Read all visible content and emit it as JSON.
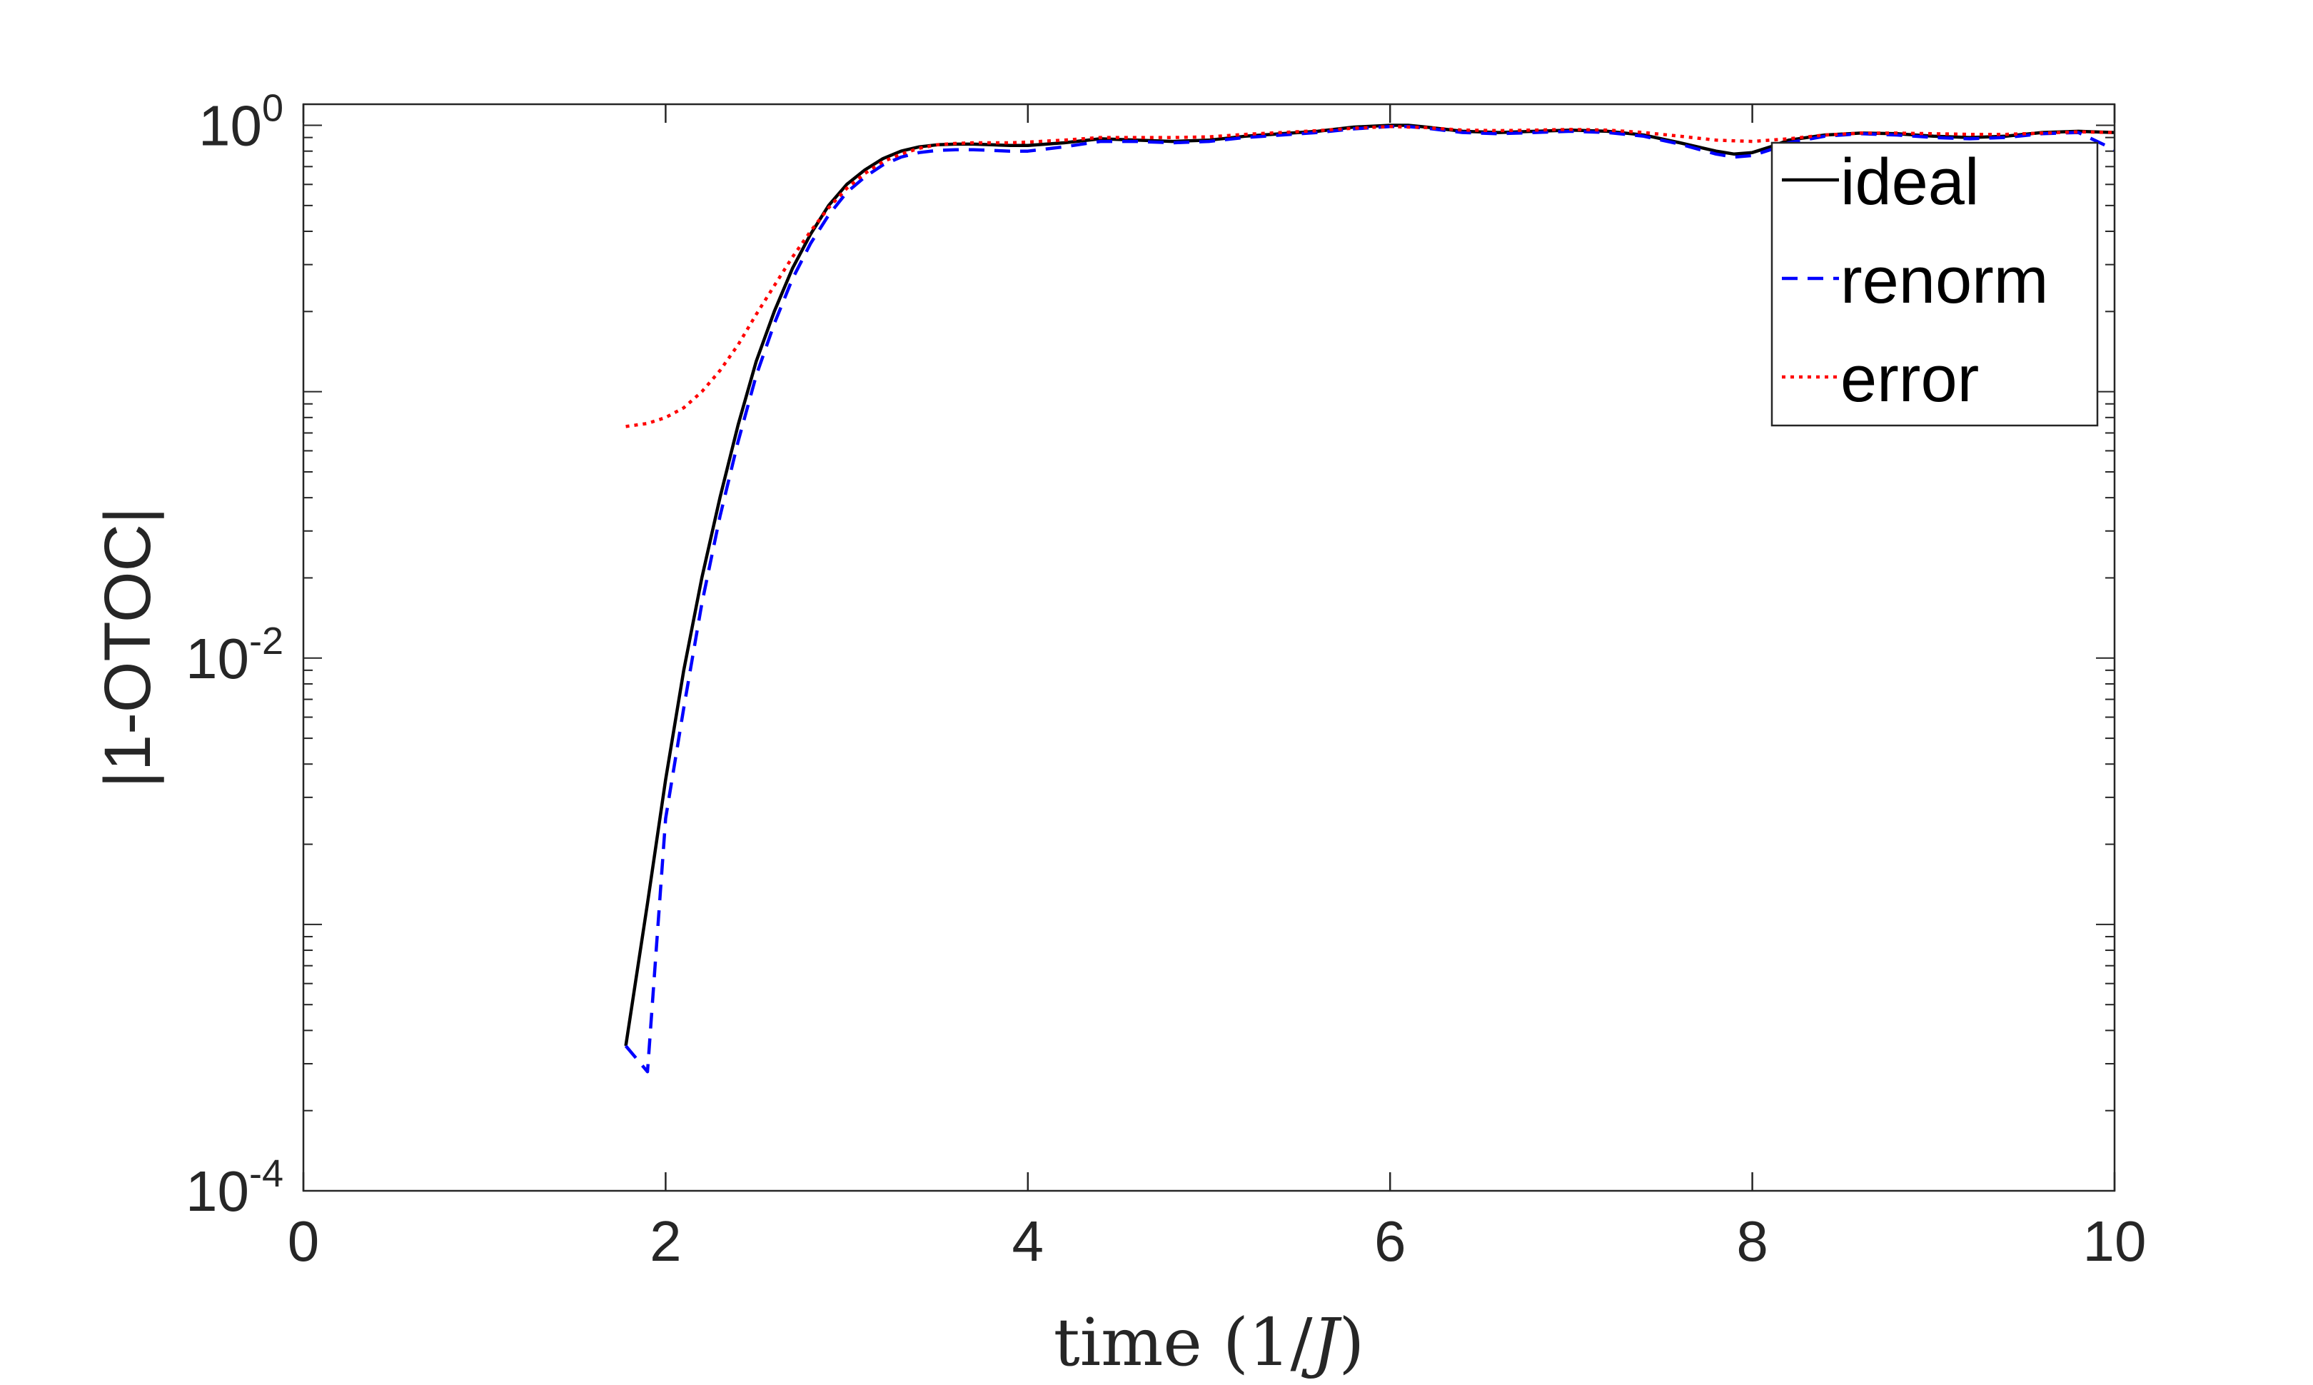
{
  "chart_data": {
    "type": "line",
    "title": "",
    "xlabel_parts": [
      "time ",
      "(1/",
      "J",
      ")"
    ],
    "ylabel": "|1-OTOC|",
    "xlim": [
      0,
      10
    ],
    "ylim": [
      0.0001,
      1.2
    ],
    "yscale": "log",
    "grid": false,
    "legend_position": "top-right",
    "x_ticks": [
      {
        "value": 0,
        "label": "0"
      },
      {
        "value": 2,
        "label": "2"
      },
      {
        "value": 4,
        "label": "4"
      },
      {
        "value": 6,
        "label": "6"
      },
      {
        "value": 8,
        "label": "8"
      },
      {
        "value": 10,
        "label": "10"
      }
    ],
    "y_ticks": [
      {
        "value": 1,
        "base": "10",
        "exp": "0"
      },
      {
        "value": 0.01,
        "base": "10",
        "exp": "-2"
      },
      {
        "value": 0.0001,
        "base": "10",
        "exp": "-4"
      }
    ],
    "series": [
      {
        "name": "ideal",
        "color": "#000000",
        "style": "solid",
        "x": [
          1.78,
          1.9,
          2.0,
          2.1,
          2.2,
          2.3,
          2.4,
          2.5,
          2.6,
          2.7,
          2.8,
          2.9,
          3.0,
          3.1,
          3.2,
          3.3,
          3.4,
          3.5,
          3.6,
          3.7,
          3.8,
          3.9,
          4.0,
          4.2,
          4.4,
          4.6,
          4.8,
          5.0,
          5.2,
          5.4,
          5.6,
          5.8,
          6.0,
          6.1,
          6.2,
          6.4,
          6.6,
          6.8,
          7.0,
          7.2,
          7.4,
          7.6,
          7.8,
          7.9,
          8.0,
          8.1,
          8.2,
          8.4,
          8.6,
          8.8,
          9.0,
          9.2,
          9.4,
          9.6,
          9.8,
          10.0
        ],
        "y": [
          0.00035,
          0.0012,
          0.0035,
          0.009,
          0.02,
          0.04,
          0.075,
          0.13,
          0.2,
          0.29,
          0.39,
          0.5,
          0.6,
          0.68,
          0.75,
          0.8,
          0.83,
          0.845,
          0.85,
          0.85,
          0.845,
          0.84,
          0.84,
          0.86,
          0.89,
          0.88,
          0.87,
          0.88,
          0.91,
          0.93,
          0.95,
          0.985,
          1.0,
          1.0,
          0.985,
          0.95,
          0.94,
          0.95,
          0.96,
          0.95,
          0.92,
          0.86,
          0.8,
          0.78,
          0.79,
          0.83,
          0.88,
          0.92,
          0.935,
          0.93,
          0.91,
          0.9,
          0.91,
          0.94,
          0.95,
          0.94
        ]
      },
      {
        "name": "renorm",
        "color": "#0000ff",
        "style": "dashed",
        "x": [
          1.78,
          1.9,
          2.0,
          2.1,
          2.2,
          2.3,
          2.4,
          2.5,
          2.6,
          2.7,
          2.8,
          2.9,
          3.0,
          3.1,
          3.2,
          3.3,
          3.4,
          3.5,
          3.6,
          3.7,
          3.8,
          3.9,
          4.0,
          4.2,
          4.4,
          4.6,
          4.8,
          5.0,
          5.2,
          5.4,
          5.6,
          5.8,
          6.0,
          6.1,
          6.2,
          6.4,
          6.6,
          6.8,
          7.0,
          7.2,
          7.4,
          7.6,
          7.8,
          7.9,
          8.0,
          8.1,
          8.2,
          8.4,
          8.6,
          8.8,
          9.0,
          9.2,
          9.4,
          9.6,
          9.8,
          10.0
        ],
        "y": [
          0.00035,
          0.00028,
          0.0025,
          0.0065,
          0.016,
          0.034,
          0.065,
          0.115,
          0.18,
          0.265,
          0.36,
          0.46,
          0.56,
          0.64,
          0.71,
          0.76,
          0.79,
          0.805,
          0.81,
          0.81,
          0.805,
          0.8,
          0.8,
          0.83,
          0.87,
          0.87,
          0.86,
          0.87,
          0.9,
          0.92,
          0.94,
          0.97,
          0.99,
          0.99,
          0.975,
          0.94,
          0.93,
          0.94,
          0.95,
          0.94,
          0.91,
          0.85,
          0.78,
          0.76,
          0.77,
          0.81,
          0.86,
          0.91,
          0.93,
          0.92,
          0.9,
          0.89,
          0.9,
          0.93,
          0.94,
          0.81
        ]
      },
      {
        "name": "error",
        "color": "#ff0000",
        "style": "dotted",
        "x": [
          1.78,
          1.9,
          2.0,
          2.1,
          2.2,
          2.3,
          2.4,
          2.5,
          2.6,
          2.7,
          2.8,
          2.9,
          3.0,
          3.1,
          3.2,
          3.3,
          3.4,
          3.5,
          3.6,
          3.7,
          3.8,
          3.9,
          4.0,
          4.2,
          4.4,
          4.6,
          4.8,
          5.0,
          5.2,
          5.4,
          5.6,
          5.8,
          6.0,
          6.2,
          6.4,
          6.6,
          6.8,
          7.0,
          7.2,
          7.4,
          7.6,
          7.8,
          8.0,
          8.2,
          8.4,
          8.6,
          8.8,
          9.0,
          9.2,
          9.4,
          9.6,
          9.8,
          10.0
        ],
        "y": [
          0.074,
          0.076,
          0.08,
          0.087,
          0.1,
          0.12,
          0.15,
          0.195,
          0.25,
          0.32,
          0.4,
          0.49,
          0.58,
          0.66,
          0.73,
          0.78,
          0.82,
          0.845,
          0.855,
          0.86,
          0.86,
          0.86,
          0.865,
          0.88,
          0.9,
          0.9,
          0.9,
          0.905,
          0.925,
          0.94,
          0.955,
          0.975,
          0.99,
          0.98,
          0.96,
          0.955,
          0.96,
          0.965,
          0.96,
          0.94,
          0.91,
          0.88,
          0.87,
          0.89,
          0.92,
          0.935,
          0.935,
          0.93,
          0.925,
          0.925,
          0.935,
          0.945,
          0.94
        ]
      }
    ]
  }
}
